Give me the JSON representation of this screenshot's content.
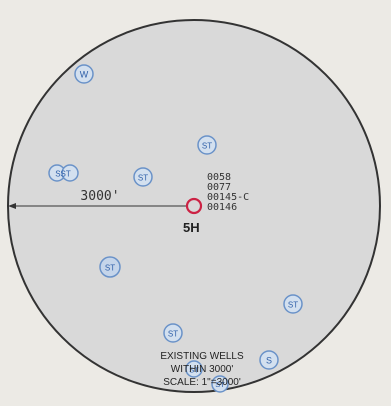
{
  "map": {
    "radius_label": "3000'",
    "well_name": "5H",
    "well_ids": [
      "0058",
      "0077",
      "00145-C",
      "00146"
    ],
    "legend": {
      "line1": "EXISTING WELLS",
      "line2": "WITHIN 3000'",
      "line3": "SCALE: 1\"=3000'"
    },
    "markers": [
      {
        "label": "W",
        "kind": "water"
      },
      {
        "label": "ST",
        "kind": "st"
      },
      {
        "label": "SST",
        "kind": "st"
      },
      {
        "label": "ST",
        "kind": "st"
      },
      {
        "label": "ST",
        "kind": "st"
      },
      {
        "label": "ST",
        "kind": "st"
      },
      {
        "label": "ST",
        "kind": "st"
      },
      {
        "label": "ST",
        "kind": "st"
      },
      {
        "label": "S",
        "kind": "s"
      },
      {
        "label": "ST",
        "kind": "st"
      }
    ]
  },
  "colors": {
    "circle_fill": "#d9d9d9",
    "circle_stroke": "#333333",
    "marker_fill": "#d3e0ef",
    "marker_stroke": "#6a92c8",
    "marker_text": "#2f5fa8",
    "target_well": "#cc2244"
  }
}
